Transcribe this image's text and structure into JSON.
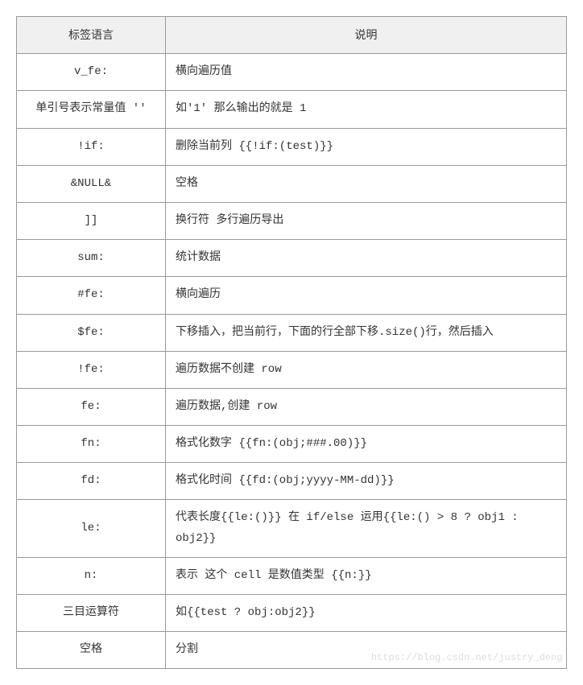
{
  "table": {
    "headers": {
      "tag": "标签语言",
      "desc": "说明"
    },
    "rows": [
      {
        "tag": "v_fe:",
        "desc": "横向遍历值"
      },
      {
        "tag": "单引号表示常量值 ''",
        "desc": "如'1' 那么输出的就是 1"
      },
      {
        "tag": "!if:",
        "desc": "删除当前列 {{!if:(test)}}"
      },
      {
        "tag": "&NULL&",
        "desc": "空格"
      },
      {
        "tag": "]]",
        "desc": "换行符 多行遍历导出"
      },
      {
        "tag": "sum:",
        "desc": "统计数据"
      },
      {
        "tag": "#fe:",
        "desc": "横向遍历"
      },
      {
        "tag": "$fe:",
        "desc": "下移插入，把当前行，下面的行全部下移.size()行，然后插入"
      },
      {
        "tag": "!fe:",
        "desc": "遍历数据不创建 row"
      },
      {
        "tag": "fe:",
        "desc": "遍历数据,创建 row"
      },
      {
        "tag": "fn:",
        "desc": "格式化数字 {{fn:(obj;###.00)}}"
      },
      {
        "tag": "fd:",
        "desc": "格式化时间 {{fd:(obj;yyyy-MM-dd)}}"
      },
      {
        "tag": "le:",
        "desc": "代表长度{{le:()}} 在 if/else 运用{{le:() > 8 ? obj1 : obj2}}"
      },
      {
        "tag": "n:",
        "desc": "表示 这个 cell 是数值类型 {{n:}}"
      },
      {
        "tag": "三目运算符",
        "desc": "如{{test ? obj:obj2}}"
      },
      {
        "tag": "空格",
        "desc": "分割"
      }
    ],
    "styling": {
      "border_color": "#999999",
      "header_bg": "#f0f0f0",
      "body_bg": "#ffffff",
      "text_color": "#333333",
      "font_size": 14,
      "tag_col_width": 185,
      "desc_col_width": 499,
      "cell_padding": 10
    }
  },
  "watermark": "https://blog.csdn.net/justry_deng"
}
